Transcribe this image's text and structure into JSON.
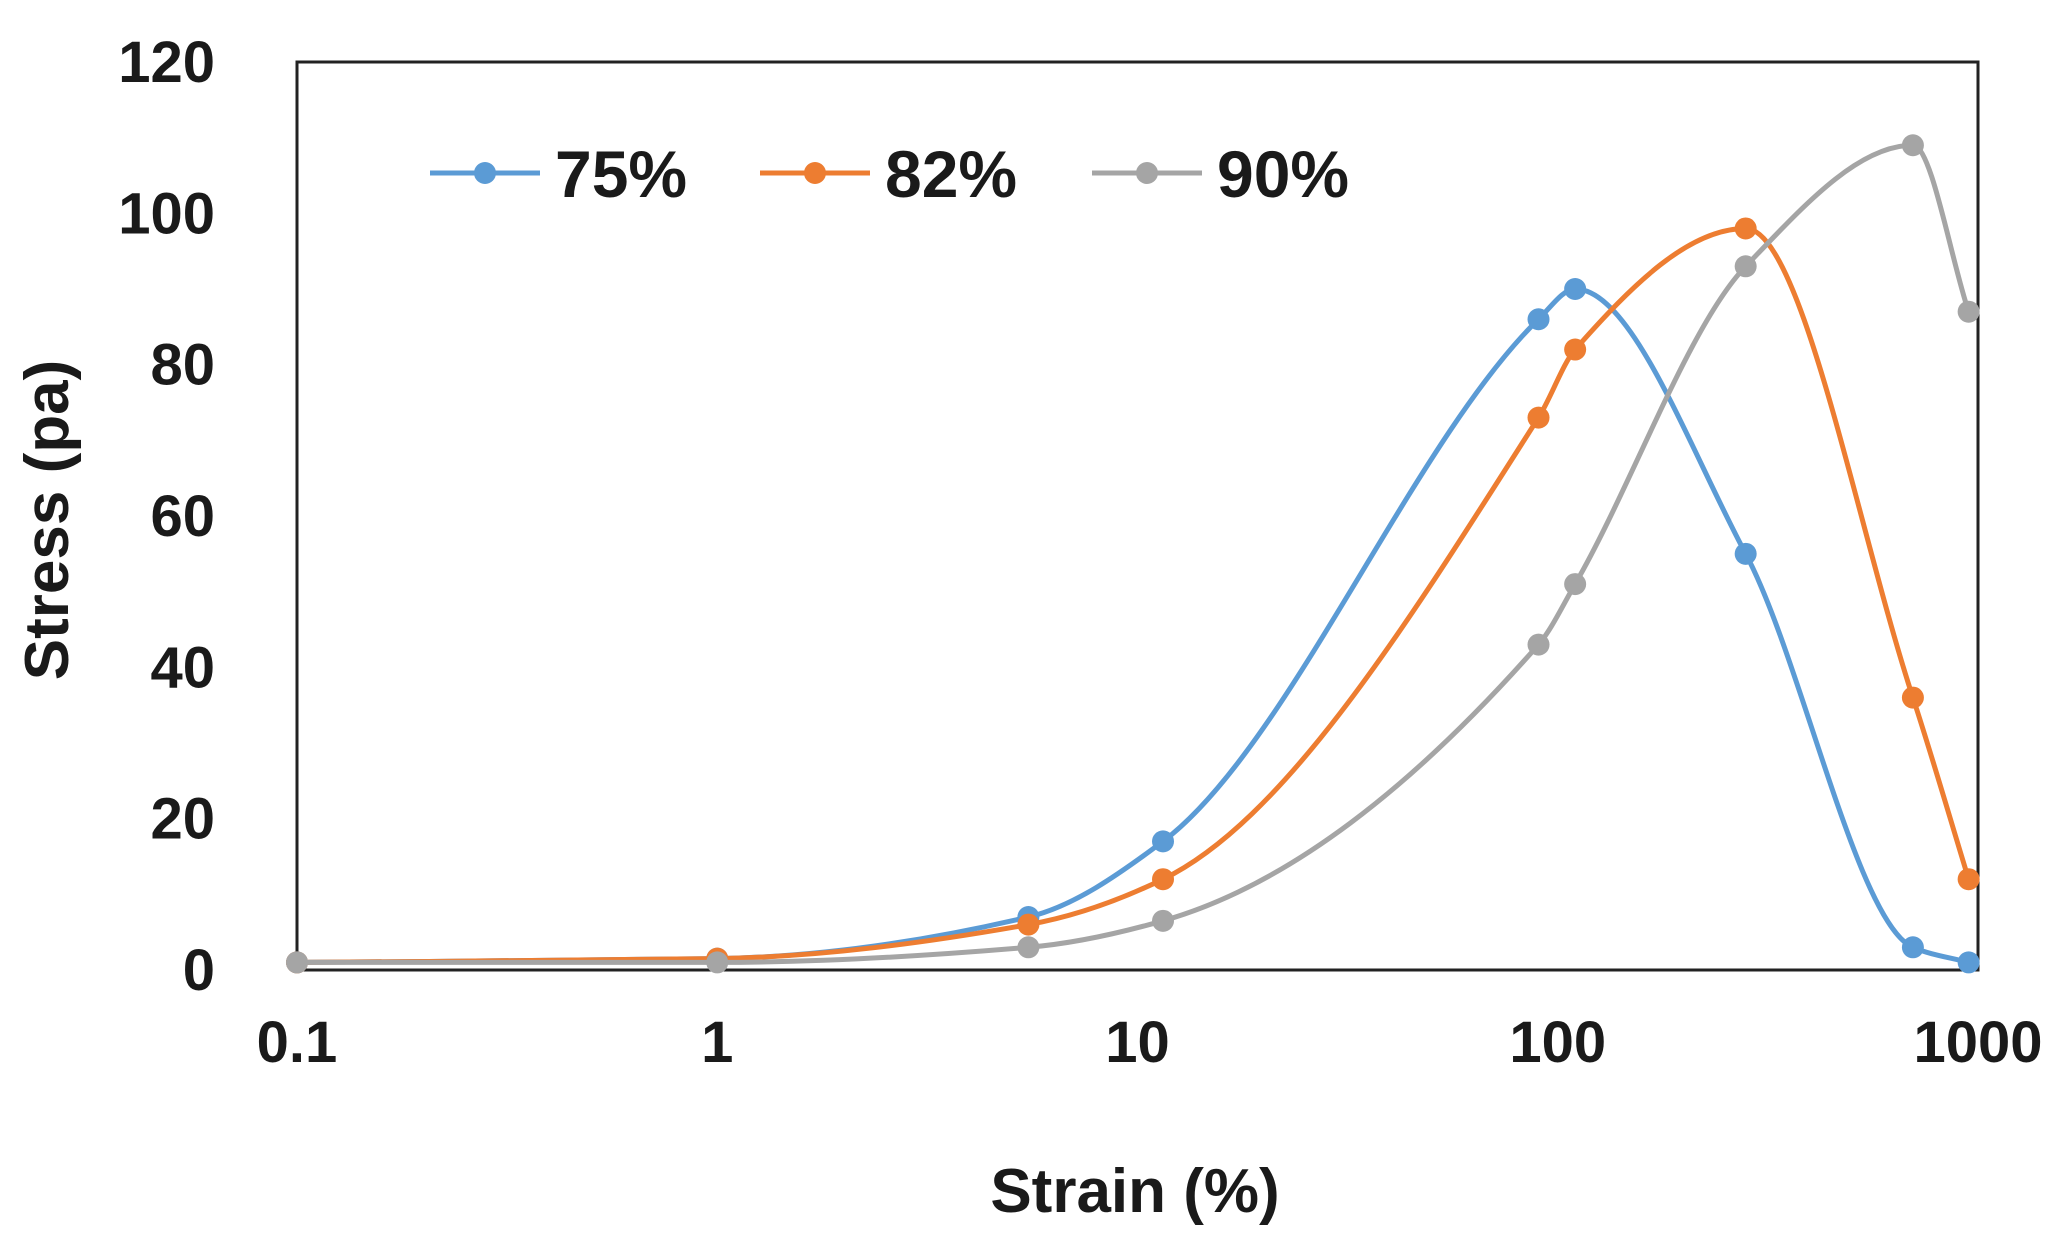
{
  "chart_data": {
    "type": "line",
    "title": "",
    "xlabel": "Strain (%)",
    "ylabel": "Stress (pa)",
    "xscale": "log",
    "xlim": [
      0.1,
      1000
    ],
    "ylim": [
      0,
      120
    ],
    "xticks": [
      "0.1",
      "1",
      "10",
      "100",
      "1000"
    ],
    "yticks": [
      "0",
      "20",
      "40",
      "60",
      "80",
      "100",
      "120"
    ],
    "grid": false,
    "legend_position": "top-left",
    "series": [
      {
        "name": "75%",
        "color": "#5b9bd5",
        "x": [
          0.1,
          1,
          5.5,
          11.5,
          90,
          110,
          280,
          700,
          950
        ],
        "y": [
          1,
          1.5,
          7,
          17,
          86,
          90,
          55,
          3,
          1
        ]
      },
      {
        "name": "82%",
        "color": "#ed7d31",
        "x": [
          0.1,
          1,
          5.5,
          11.5,
          90,
          110,
          280,
          700,
          950
        ],
        "y": [
          1,
          1.5,
          6,
          12,
          73,
          82,
          98,
          36,
          12
        ]
      },
      {
        "name": "90%",
        "color": "#a5a5a5",
        "x": [
          0.1,
          1,
          5.5,
          11.5,
          90,
          110,
          280,
          700,
          950
        ],
        "y": [
          1,
          1,
          3,
          6.5,
          43,
          51,
          93,
          109,
          87
        ]
      }
    ]
  }
}
